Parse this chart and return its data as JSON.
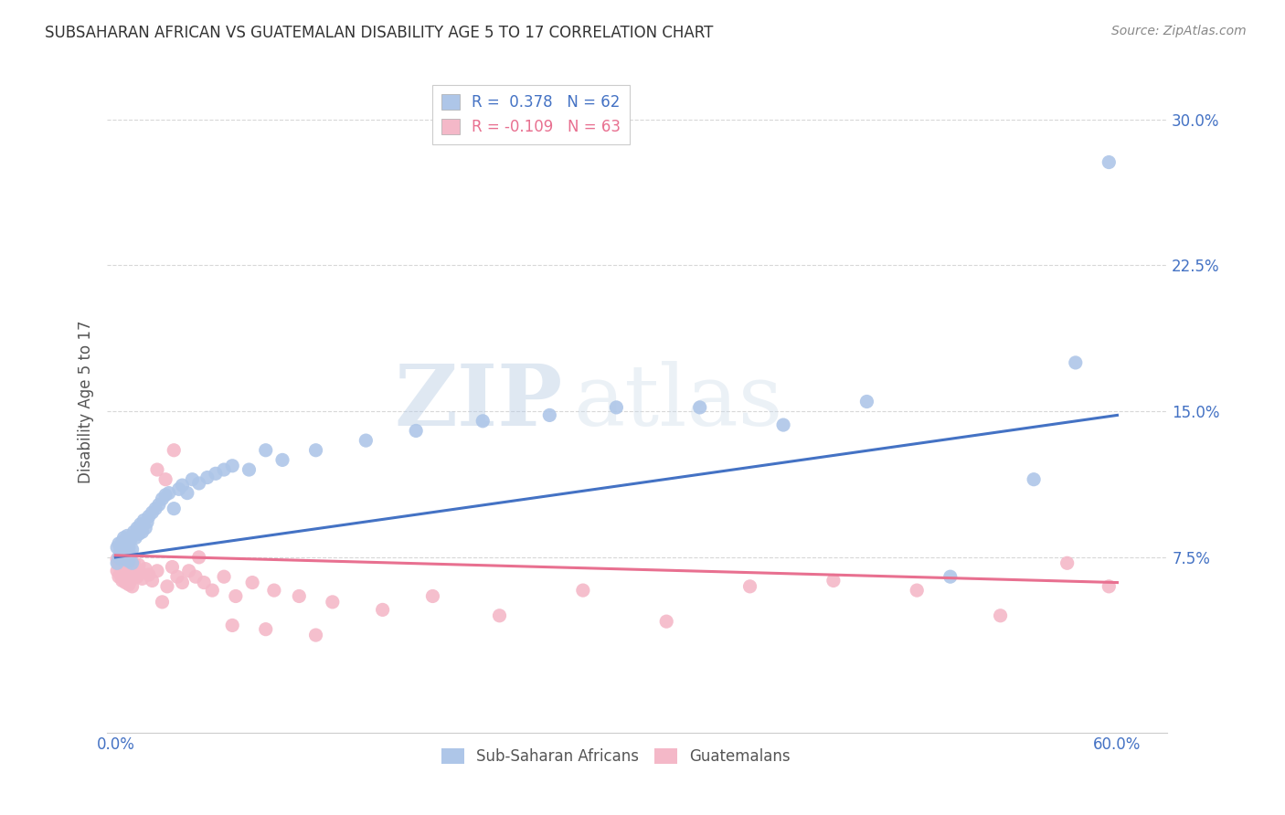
{
  "title": "SUBSAHARAN AFRICAN VS GUATEMALAN DISABILITY AGE 5 TO 17 CORRELATION CHART",
  "source": "Source: ZipAtlas.com",
  "ylabel": "Disability Age 5 to 17",
  "ytick_labels": [
    "7.5%",
    "15.0%",
    "22.5%",
    "30.0%"
  ],
  "ytick_values": [
    0.075,
    0.15,
    0.225,
    0.3
  ],
  "xlim": [
    -0.005,
    0.63
  ],
  "ylim": [
    -0.015,
    0.325
  ],
  "blue_color": "#aec6e8",
  "pink_color": "#f4b8c8",
  "blue_line_color": "#4472c4",
  "pink_line_color": "#e87090",
  "legend_R1": "R =  0.378",
  "legend_N1": "N = 62",
  "legend_R2": "R = -0.109",
  "legend_N2": "N = 63",
  "watermark": "ZIPatlas",
  "background_color": "#ffffff",
  "grid_color": "#d8d8d8",
  "blue_scatter_x": [
    0.001,
    0.001,
    0.002,
    0.002,
    0.003,
    0.003,
    0.004,
    0.004,
    0.005,
    0.005,
    0.006,
    0.006,
    0.007,
    0.007,
    0.008,
    0.008,
    0.009,
    0.009,
    0.01,
    0.01,
    0.011,
    0.012,
    0.013,
    0.014,
    0.015,
    0.016,
    0.017,
    0.018,
    0.019,
    0.02,
    0.022,
    0.024,
    0.026,
    0.028,
    0.03,
    0.032,
    0.035,
    0.038,
    0.04,
    0.043,
    0.046,
    0.05,
    0.055,
    0.06,
    0.065,
    0.07,
    0.08,
    0.09,
    0.1,
    0.12,
    0.15,
    0.18,
    0.22,
    0.26,
    0.3,
    0.35,
    0.4,
    0.45,
    0.5,
    0.55,
    0.575,
    0.595
  ],
  "blue_scatter_y": [
    0.072,
    0.08,
    0.075,
    0.082,
    0.074,
    0.079,
    0.076,
    0.083,
    0.077,
    0.085,
    0.074,
    0.082,
    0.078,
    0.086,
    0.073,
    0.08,
    0.076,
    0.084,
    0.072,
    0.079,
    0.088,
    0.085,
    0.09,
    0.087,
    0.092,
    0.088,
    0.094,
    0.09,
    0.093,
    0.096,
    0.098,
    0.1,
    0.102,
    0.105,
    0.107,
    0.108,
    0.1,
    0.11,
    0.112,
    0.108,
    0.115,
    0.113,
    0.116,
    0.118,
    0.12,
    0.122,
    0.12,
    0.13,
    0.125,
    0.13,
    0.135,
    0.14,
    0.145,
    0.148,
    0.152,
    0.152,
    0.143,
    0.155,
    0.065,
    0.115,
    0.175,
    0.278
  ],
  "pink_scatter_x": [
    0.001,
    0.001,
    0.002,
    0.002,
    0.003,
    0.003,
    0.004,
    0.004,
    0.005,
    0.005,
    0.006,
    0.006,
    0.007,
    0.007,
    0.008,
    0.008,
    0.009,
    0.009,
    0.01,
    0.01,
    0.011,
    0.012,
    0.013,
    0.014,
    0.015,
    0.016,
    0.018,
    0.02,
    0.022,
    0.025,
    0.028,
    0.031,
    0.034,
    0.037,
    0.04,
    0.044,
    0.048,
    0.053,
    0.058,
    0.065,
    0.072,
    0.082,
    0.095,
    0.11,
    0.13,
    0.16,
    0.19,
    0.23,
    0.28,
    0.33,
    0.38,
    0.43,
    0.48,
    0.53,
    0.57,
    0.595,
    0.025,
    0.03,
    0.035,
    0.05,
    0.07,
    0.09,
    0.12
  ],
  "pink_scatter_y": [
    0.068,
    0.074,
    0.065,
    0.071,
    0.066,
    0.072,
    0.063,
    0.069,
    0.065,
    0.073,
    0.062,
    0.069,
    0.064,
    0.07,
    0.061,
    0.067,
    0.063,
    0.07,
    0.06,
    0.068,
    0.072,
    0.068,
    0.065,
    0.071,
    0.067,
    0.064,
    0.069,
    0.066,
    0.063,
    0.068,
    0.052,
    0.06,
    0.07,
    0.065,
    0.062,
    0.068,
    0.065,
    0.062,
    0.058,
    0.065,
    0.055,
    0.062,
    0.058,
    0.055,
    0.052,
    0.048,
    0.055,
    0.045,
    0.058,
    0.042,
    0.06,
    0.063,
    0.058,
    0.045,
    0.072,
    0.06,
    0.12,
    0.115,
    0.13,
    0.075,
    0.04,
    0.038,
    0.035
  ]
}
